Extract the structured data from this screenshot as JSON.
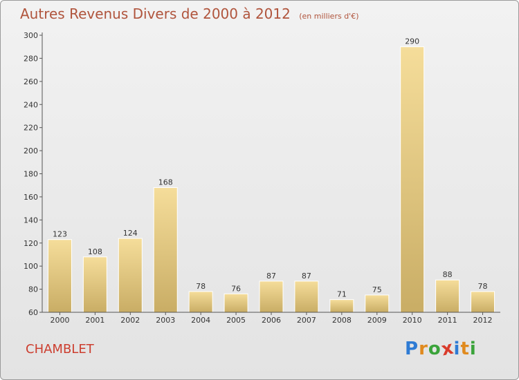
{
  "header": {
    "title": "Autres Revenus Divers de 2000 à 2012",
    "unit": "(en milliers d'€)"
  },
  "footer": {
    "commune": "CHAMBLET",
    "logo_letters": [
      "P",
      "r",
      "o",
      "x",
      "i",
      "t",
      "i"
    ],
    "logo_colors": [
      "#2e7bd4",
      "#e08a1e",
      "#3aa33a",
      "#d93b2b",
      "#2e7bd4",
      "#e08a1e",
      "#3aa33a"
    ]
  },
  "colors": {
    "bar_light": "#f5dd9a",
    "bar_dark": "#c9ad65",
    "axis": "#555555",
    "grid": "#d2d2d2"
  },
  "chart_data": {
    "type": "bar",
    "title": "Autres Revenus Divers de 2000 à 2012",
    "categories": [
      "2000",
      "2001",
      "2002",
      "2003",
      "2004",
      "2005",
      "2006",
      "2007",
      "2008",
      "2009",
      "2010",
      "2011",
      "2012"
    ],
    "values": [
      123,
      108,
      124,
      168,
      78,
      76,
      87,
      87,
      71,
      75,
      290,
      88,
      78
    ],
    "ylim": [
      60,
      300
    ],
    "yticks": [
      60,
      80,
      100,
      120,
      140,
      160,
      180,
      200,
      220,
      240,
      260,
      280,
      300
    ],
    "grid": false
  }
}
